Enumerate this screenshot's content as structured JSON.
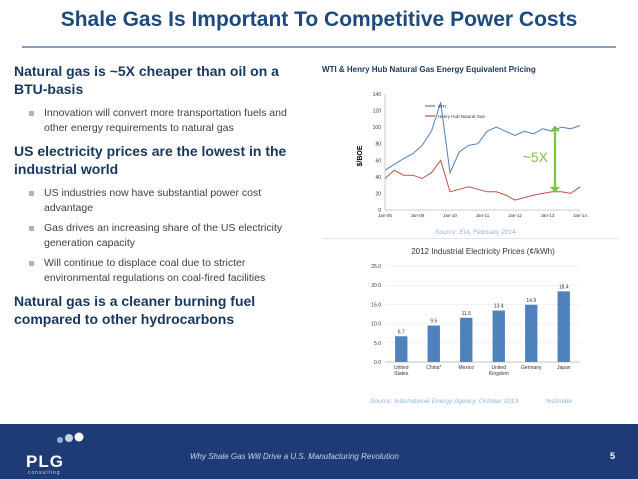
{
  "title": "Shale Gas Is Important To Competitive Power Costs",
  "left": {
    "heading1": "Natural gas is ~5X cheaper than oil on a BTU-basis",
    "bullets1": [
      "Innovation will convert more transportation fuels and other energy requirements to natural gas"
    ],
    "heading2": "US electricity prices are the lowest in the industrial world",
    "bullets2": [
      "US industries now have substantial power cost advantage",
      "Gas drives an increasing share of the US electricity generation capacity",
      "Will continue to displace coal due to stricter environmental regulations on coal-fired facilities"
    ],
    "heading3": "Natural gas is a cleaner burning fuel compared to other hydrocarbons"
  },
  "chart_data": [
    {
      "type": "line",
      "title": "WTI & Henry Hub Natural Gas Energy Equivalent Pricing",
      "ylabel": "$/BOE",
      "ylim": [
        0,
        140
      ],
      "yticks": [
        "140",
        "120",
        "100",
        "80",
        "60",
        "40",
        "20",
        "0"
      ],
      "xticks": [
        "Jan-05",
        "Jan-08",
        "Jan-10",
        "Jan-11",
        "Jan-12",
        "Jan-13",
        "Jan-14"
      ],
      "series": [
        {
          "name": "WTI",
          "color": "#4f81bd",
          "values": [
            48,
            55,
            62,
            68,
            78,
            95,
            130,
            45,
            70,
            78,
            80,
            95,
            100,
            95,
            90,
            95,
            92,
            98,
            95,
            100,
            98,
            102
          ]
        },
        {
          "name": "Henry Hub Natural Gas",
          "color": "#c0504d",
          "values": [
            38,
            48,
            42,
            42,
            38,
            45,
            60,
            22,
            25,
            28,
            25,
            22,
            22,
            18,
            12,
            15,
            18,
            20,
            22,
            22,
            20,
            28
          ]
        }
      ],
      "annotation": "~5X",
      "source": "Source: EIA, February 2014"
    },
    {
      "type": "bar",
      "title": "2012 Industrial Electricity Prices (¢/kWh)",
      "categories": [
        "United States",
        "China*",
        "Mexico",
        "United Kingdom",
        "Germany",
        "Japan"
      ],
      "values": [
        6.7,
        9.5,
        11.5,
        13.4,
        14.9,
        18.4
      ],
      "ylim": [
        0,
        25
      ],
      "yticks": [
        "25.0",
        "20.0",
        "15.0",
        "10.0",
        "5.0",
        "0.0"
      ],
      "color": "#4f81bd",
      "source": "Source: International Energy Agency, October 2013",
      "note": "*estimate"
    }
  ],
  "footer": {
    "text": "Why Shale Gas Will Drive a U.S. Manufacturing Revolution",
    "page": "5",
    "logo": "PLG",
    "logo_sub": "consulting"
  }
}
